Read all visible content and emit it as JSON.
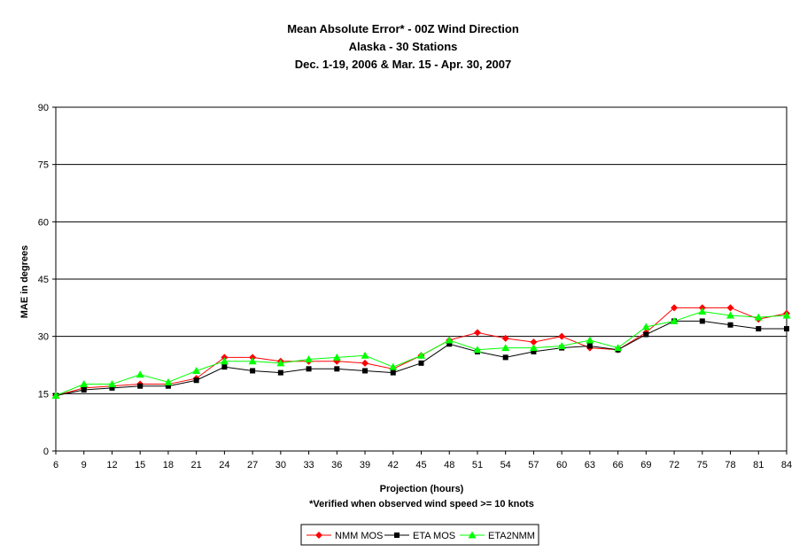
{
  "chart_data": {
    "type": "line",
    "title": "Mean Absolute Error* - 00Z Wind Direction",
    "subtitle_lines": [
      "Alaska - 30 Stations",
      "Dec. 1-19, 2006 & Mar. 15 - Apr. 30, 2007"
    ],
    "xlabel": "Projection (hours)",
    "footnote": "*Verified when observed wind speed >= 10 knots",
    "ylabel": "MAE in degrees",
    "x": [
      6,
      9,
      12,
      15,
      18,
      21,
      24,
      27,
      30,
      33,
      36,
      39,
      42,
      45,
      48,
      51,
      54,
      57,
      60,
      63,
      66,
      69,
      72,
      75,
      78,
      81,
      84
    ],
    "xlim": [
      6,
      84
    ],
    "ylim": [
      0,
      90
    ],
    "yticks": [
      0,
      15,
      30,
      45,
      60,
      75,
      90
    ],
    "grid": "horizontal",
    "legend_position": "bottom-center",
    "series": [
      {
        "name": "NMM MOS",
        "color": "#ff0000",
        "marker": "diamond",
        "values": [
          14.5,
          16.5,
          17,
          17.5,
          17.5,
          19,
          24.5,
          24.5,
          23.5,
          23.5,
          23.5,
          23,
          21.5,
          25,
          29,
          31,
          29.5,
          28.5,
          30,
          27,
          26.5,
          31,
          37.5,
          37.5,
          37.5,
          34.5,
          36
        ]
      },
      {
        "name": "ETA MOS",
        "color": "#000000",
        "marker": "square",
        "values": [
          14.5,
          16,
          16.5,
          17,
          17,
          18.5,
          22,
          21,
          20.5,
          21.5,
          21.5,
          21,
          20.5,
          23,
          28,
          26,
          24.5,
          26,
          27,
          27.5,
          26.5,
          30.5,
          34,
          34,
          33,
          32,
          32
        ]
      },
      {
        "name": "ETA2NMM",
        "color": "#00ff00",
        "marker": "triangle",
        "values": [
          14.5,
          17.5,
          17.5,
          20,
          18,
          21,
          23.5,
          23.5,
          23,
          24,
          24.5,
          25,
          22,
          25,
          29,
          26.5,
          27,
          27,
          27.5,
          29,
          27,
          32.5,
          34,
          36.5,
          35.5,
          35,
          35.5
        ]
      }
    ]
  }
}
